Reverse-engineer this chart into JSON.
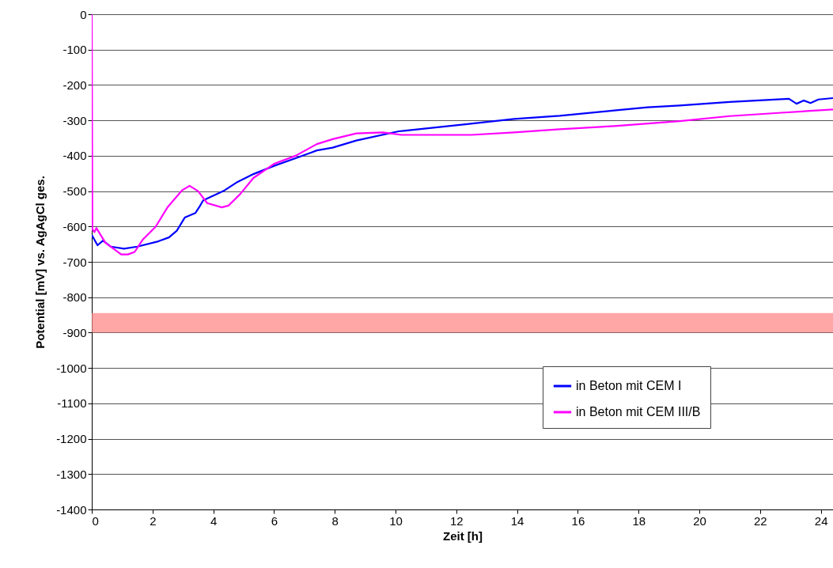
{
  "chart_data": {
    "type": "line",
    "xlabel": "Zeit [h]",
    "ylabel": "Potential [mV] vs. AgAgCl ges.",
    "xlim": [
      0,
      24.4
    ],
    "xticks": [
      0,
      2,
      4,
      6,
      8,
      10,
      12,
      14,
      16,
      18,
      20,
      22,
      24
    ],
    "ylim": [
      -1400,
      0
    ],
    "yticks": [
      -1400,
      -1300,
      -1200,
      -1100,
      -1000,
      -900,
      -800,
      -700,
      -600,
      -500,
      -400,
      -300,
      -200,
      -100,
      0
    ],
    "grid": "y",
    "legend": "right",
    "marker": "none",
    "line_style": "solid",
    "bands": [
      {
        "axis": "y",
        "from": -900,
        "to": -845,
        "color": "#ff8080"
      }
    ],
    "series": [
      {
        "name": "in Beton mit CEM I",
        "color": "#0000ff",
        "x": [
          0,
          0.19,
          0.37,
          0.63,
          1.06,
          1.5,
          2.19,
          2.54,
          2.8,
          3.06,
          3.41,
          3.54,
          3.67,
          4.37,
          4.8,
          5.32,
          6.02,
          6.71,
          7.23,
          7.41,
          7.93,
          8.71,
          10.1,
          12.3,
          13.9,
          15.4,
          17.2,
          18.3,
          19.35,
          21.0,
          22.95,
          23.2,
          23.44,
          23.66,
          23.92,
          24.4
        ],
        "values": [
          -624,
          -653,
          -640,
          -657,
          -663,
          -657,
          -642,
          -631,
          -612,
          -575,
          -562,
          -545,
          -526,
          -498,
          -474,
          -452,
          -428,
          -407,
          -391,
          -385,
          -377,
          -357,
          -331,
          -311,
          -296,
          -287,
          -272,
          -263,
          -258,
          -248,
          -239,
          -253,
          -244,
          -251,
          -241,
          -237
        ]
      },
      {
        "name": "in Beton mit CEM III/B",
        "color": "#ff00ff",
        "x": [
          0,
          0.02,
          0.09,
          0.15,
          0.45,
          0.97,
          1.19,
          1.41,
          1.67,
          2.1,
          2.5,
          2.97,
          3.22,
          3.5,
          3.8,
          4.28,
          4.5,
          4.89,
          5.32,
          6.02,
          6.71,
          7.41,
          7.93,
          8.71,
          9.58,
          10.2,
          12.5,
          13.9,
          15.4,
          17.2,
          19.35,
          21.0,
          22.6,
          24.4
        ],
        "values": [
          0,
          -608,
          -616,
          -604,
          -646,
          -679,
          -679,
          -672,
          -638,
          -601,
          -545,
          -498,
          -485,
          -500,
          -534,
          -546,
          -541,
          -508,
          -463,
          -422,
          -400,
          -367,
          -353,
          -337,
          -334,
          -341,
          -341,
          -334,
          -325,
          -316,
          -302,
          -288,
          -279,
          -269
        ]
      }
    ]
  }
}
